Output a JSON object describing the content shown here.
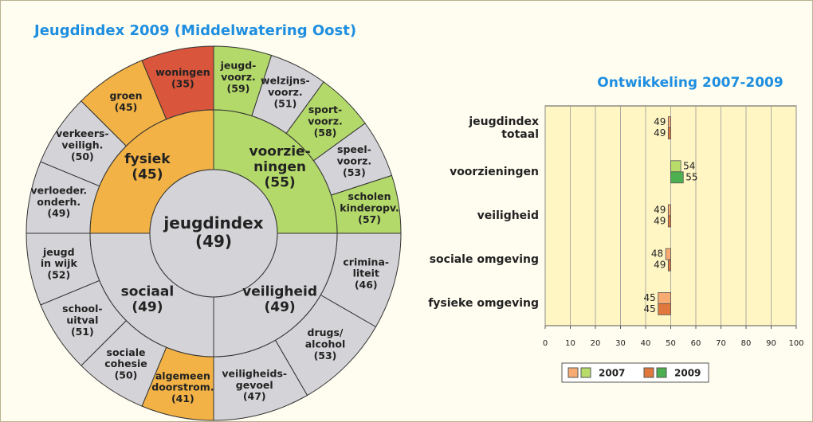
{
  "chart_data": [
    {
      "type": "sunburst",
      "title": "Jeugdindex 2009 (Middelwatering Oost)",
      "center": {
        "label": [
          "jeugdindex"
        ],
        "value": 49,
        "value_label": "(49)",
        "color": "#d4d4d8"
      },
      "groups": [
        {
          "label": [
            "voorzie-",
            "ningen"
          ],
          "value": 55,
          "value_label": "(55)",
          "color": "#b3d96a",
          "children": [
            {
              "label": [
                "jeugd-",
                "voorz."
              ],
              "value": 59,
              "value_label": "(59)",
              "color": "#b3d96a"
            },
            {
              "label": [
                "welzijns-",
                "voorz."
              ],
              "value": 51,
              "value_label": "(51)",
              "color": "#d4d4d8"
            },
            {
              "label": [
                "sport-",
                "voorz."
              ],
              "value": 58,
              "value_label": "(58)",
              "color": "#b3d96a"
            },
            {
              "label": [
                "speel-",
                "voorz."
              ],
              "value": 53,
              "value_label": "(53)",
              "color": "#d4d4d8"
            },
            {
              "label": [
                "scholen",
                "kinderopv."
              ],
              "value": 57,
              "value_label": "(57)",
              "color": "#b3d96a"
            }
          ]
        },
        {
          "label": [
            "veiligheid"
          ],
          "value": 49,
          "value_label": "(49)",
          "color": "#d4d4d8",
          "children": [
            {
              "label": [
                "crimina-",
                "liteit"
              ],
              "value": 46,
              "value_label": "(46)",
              "color": "#d4d4d8"
            },
            {
              "label": [
                "drugs/",
                "alcohol"
              ],
              "value": 53,
              "value_label": "(53)",
              "color": "#d4d4d8"
            },
            {
              "label": [
                "veiligheids-",
                "gevoel"
              ],
              "value": 47,
              "value_label": "(47)",
              "color": "#d4d4d8"
            }
          ]
        },
        {
          "label": [
            "sociaal"
          ],
          "value": 49,
          "value_label": "(49)",
          "color": "#d4d4d8",
          "children": [
            {
              "label": [
                "algemeen",
                "doorstrom."
              ],
              "value": 41,
              "value_label": "(41)",
              "color": "#f2b245"
            },
            {
              "label": [
                "sociale",
                "cohesie"
              ],
              "value": 50,
              "value_label": "(50)",
              "color": "#d4d4d8"
            },
            {
              "label": [
                "school-",
                "uitval"
              ],
              "value": 51,
              "value_label": "(51)",
              "color": "#d4d4d8"
            },
            {
              "label": [
                "jeugd",
                "in wijk"
              ],
              "value": 52,
              "value_label": "(52)",
              "color": "#d4d4d8"
            }
          ]
        },
        {
          "label": [
            "fysiek"
          ],
          "value": 45,
          "value_label": "(45)",
          "color": "#f2b245",
          "children": [
            {
              "label": [
                "verloeder.",
                "onderh."
              ],
              "value": 49,
              "value_label": "(49)",
              "color": "#d4d4d8"
            },
            {
              "label": [
                "verkeers-",
                "veiligh."
              ],
              "value": 50,
              "value_label": "(50)",
              "color": "#d4d4d8"
            },
            {
              "label": [
                "groen"
              ],
              "value": 45,
              "value_label": "(45)",
              "color": "#f2b245"
            },
            {
              "label": [
                "woningen"
              ],
              "value": 35,
              "value_label": "(35)",
              "color": "#d9553b"
            }
          ]
        }
      ]
    },
    {
      "type": "bar",
      "title": "Ontwikkeling 2007-2009",
      "orientation": "horizontal",
      "baseline": 50,
      "categories": [
        "jeugdindex totaal",
        "voorzieningen",
        "veiligheid",
        "sociale omgeving",
        "fysieke omgeving"
      ],
      "series": [
        {
          "name": "2007",
          "values": [
            49,
            54,
            49,
            48,
            45
          ],
          "colors": [
            "#f7aa72",
            "#b8dc6a",
            "#f7aa72",
            "#f7aa72",
            "#f7aa72"
          ]
        },
        {
          "name": "2009",
          "values": [
            49,
            55,
            49,
            49,
            45
          ],
          "colors": [
            "#e0783e",
            "#4cb050",
            "#e0783e",
            "#e0783e",
            "#e0783e"
          ]
        }
      ],
      "xlim": [
        0,
        100
      ],
      "xticks": [
        0,
        10,
        20,
        30,
        40,
        50,
        60,
        70,
        80,
        90,
        100
      ],
      "grid": true,
      "legend": "bottom"
    }
  ]
}
